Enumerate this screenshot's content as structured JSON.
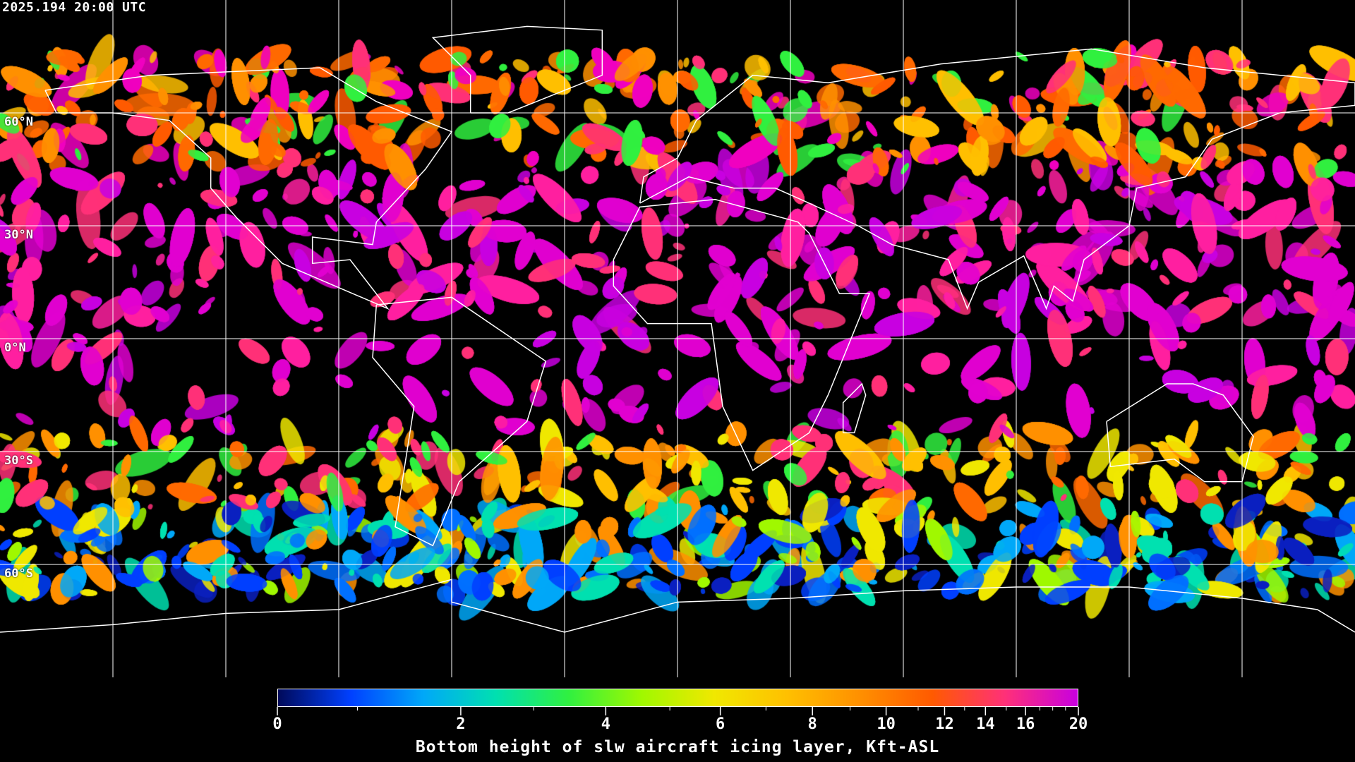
{
  "timestamp": "2025.194 20:00 UTC",
  "map": {
    "projection": "equirectangular",
    "lon_range": [
      -180,
      180
    ],
    "lat_range": [
      -90,
      90
    ],
    "grid_spacing_deg": 30,
    "lat_labels": [
      "60°N",
      "30°N",
      "0°N",
      "30°S",
      "60°S"
    ],
    "coastline_color": "#ffffff",
    "gridline_color": "#ffffff",
    "background_color": "#000000"
  },
  "colorbar": {
    "title": "Bottom height of slw aircraft icing layer, Kft-ASL",
    "tick_labels": [
      "0",
      "2",
      "4",
      "6",
      "8",
      "10",
      "12",
      "14",
      "16",
      "20"
    ],
    "tick_values": [
      0,
      2,
      4,
      6,
      8,
      10,
      12,
      14,
      16,
      20
    ],
    "range": [
      0,
      20
    ],
    "colors": [
      "#000a5a",
      "#0040ff",
      "#00a8f8",
      "#00e0b0",
      "#30f040",
      "#a0f800",
      "#f0e800",
      "#ffc000",
      "#ff9000",
      "#ff5a00",
      "#ff3078",
      "#c800e0"
    ]
  }
}
